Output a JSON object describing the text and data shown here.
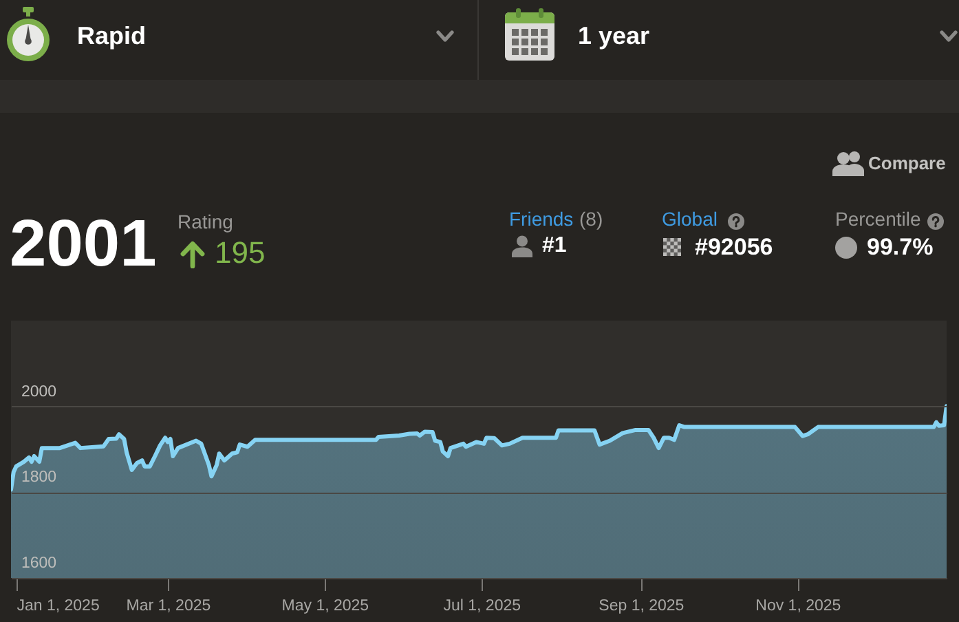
{
  "chart_data": {
    "type": "area",
    "x": [
      "2024-12-30",
      "2024-12-31",
      "2025-01-01",
      "2025-01-04",
      "2025-01-06",
      "2025-01-07",
      "2025-01-08",
      "2025-01-10",
      "2025-01-11",
      "2025-01-18",
      "2025-01-24",
      "2025-01-26",
      "2025-02-04",
      "2025-02-06",
      "2025-02-09",
      "2025-02-10",
      "2025-02-12",
      "2025-02-13",
      "2025-02-15",
      "2025-02-17",
      "2025-02-19",
      "2025-02-20",
      "2025-02-22",
      "2025-02-24",
      "2025-02-26",
      "2025-02-28",
      "2025-03-01",
      "2025-03-02",
      "2025-03-03",
      "2025-03-05",
      "2025-03-12",
      "2025-03-14",
      "2025-03-17",
      "2025-03-18",
      "2025-03-20",
      "2025-03-21",
      "2025-03-23",
      "2025-03-26",
      "2025-03-28",
      "2025-03-29",
      "2025-04-01",
      "2025-04-04",
      "2025-05-21",
      "2025-05-22",
      "2025-05-30",
      "2025-06-03",
      "2025-06-06",
      "2025-06-07",
      "2025-06-09",
      "2025-06-12",
      "2025-06-13",
      "2025-06-15",
      "2025-06-16",
      "2025-06-18",
      "2025-06-19",
      "2025-06-24",
      "2025-06-25",
      "2025-06-29",
      "2025-07-02",
      "2025-07-03",
      "2025-07-06",
      "2025-07-09",
      "2025-07-12",
      "2025-07-17",
      "2025-07-30",
      "2025-07-31",
      "2025-08-14",
      "2025-08-16",
      "2025-08-20",
      "2025-08-25",
      "2025-08-30",
      "2025-09-04",
      "2025-09-06",
      "2025-09-08",
      "2025-09-10",
      "2025-09-12",
      "2025-09-14",
      "2025-09-16",
      "2025-09-18",
      "2025-10-31",
      "2025-11-03",
      "2025-11-05",
      "2025-11-09",
      "2025-12-24",
      "2025-12-25",
      "2025-12-26",
      "2025-12-28",
      "2025-12-29"
    ],
    "series": [
      {
        "color": "#86d3f3",
        "values": [
          1806,
          1847,
          1860,
          1871,
          1881,
          1871,
          1884,
          1871,
          1903,
          1903,
          1915,
          1903,
          1907,
          1924,
          1925,
          1935,
          1924,
          1892,
          1852,
          1868,
          1874,
          1860,
          1860,
          1884,
          1909,
          1927,
          1917,
          1924,
          1884,
          1903,
          1920,
          1913,
          1863,
          1837,
          1863,
          1890,
          1874,
          1890,
          1893,
          1911,
          1906,
          1922,
          1922,
          1929,
          1932,
          1936,
          1937,
          1932,
          1941,
          1940,
          1920,
          1917,
          1895,
          1884,
          1903,
          1913,
          1906,
          1917,
          1913,
          1927,
          1926,
          1909,
          1913,
          1927,
          1927,
          1944,
          1944,
          1911,
          1920,
          1938,
          1945,
          1945,
          1927,
          1903,
          1927,
          1927,
          1922,
          1956,
          1952,
          1952,
          1931,
          1935,
          1952,
          1952,
          1963,
          1955,
          1956,
          2001
        ]
      }
    ],
    "xlim": [
      "2024-12-30",
      "2025-12-29"
    ],
    "ylim": [
      1600,
      2200
    ],
    "xticks": [
      {
        "value": "2025-01-01",
        "label": "Jan 1, 2025"
      },
      {
        "value": "2025-03-01",
        "label": "Mar 1, 2025"
      },
      {
        "value": "2025-05-01",
        "label": "May 1, 2025"
      },
      {
        "value": "2025-07-01",
        "label": "Jul 1, 2025"
      },
      {
        "value": "2025-09-01",
        "label": "Sep 1, 2025"
      },
      {
        "value": "2025-11-01",
        "label": "Nov 1, 2025"
      }
    ],
    "yticks": [
      1600,
      1800,
      2000
    ],
    "grid": "y",
    "annotations": [
      "Rapid",
      "1 year",
      "Compare",
      "2001",
      "Rating",
      "195",
      "Friends",
      "(8)",
      "#1",
      "Global",
      "#92056",
      "Percentile",
      "99.7%"
    ]
  }
}
